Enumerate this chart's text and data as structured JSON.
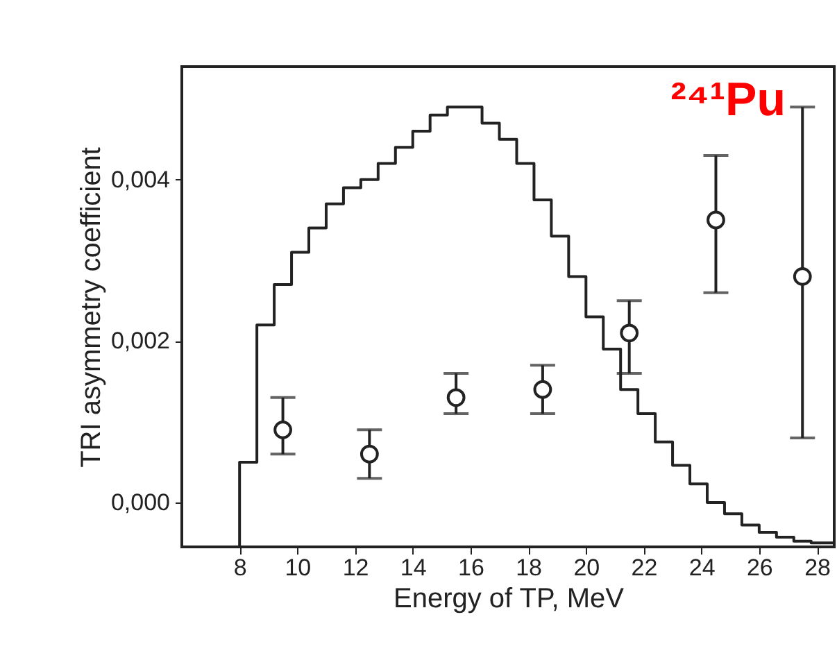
{
  "chart_data": {
    "type": "scatter",
    "xlabel": "Energy of TP, MeV",
    "ylabel": "TRI asymmetry coefficient",
    "annotations": [
      "²⁴¹Pu"
    ],
    "xlim": [
      6,
      28.6
    ],
    "xticks": [
      8,
      10,
      12,
      14,
      16,
      18,
      20,
      22,
      24,
      26,
      28
    ],
    "ylim": [
      -0.00055,
      0.0054
    ],
    "yticks": [
      {
        "value": 0,
        "label": "0,000"
      },
      {
        "value": 0.002,
        "label": "0,002"
      },
      {
        "value": 0.004,
        "label": "0,004"
      }
    ],
    "grid": false,
    "series": [
      {
        "type": "step",
        "color": "#222222",
        "line_style": "solid",
        "marker": "none",
        "x": [
          8.0,
          8.0,
          8.6,
          9.2,
          9.8,
          10.4,
          11.0,
          11.6,
          12.2,
          12.8,
          13.4,
          14.0,
          14.6,
          15.2,
          15.8,
          16.4,
          17.0,
          17.6,
          18.2,
          18.8,
          19.4,
          20.0,
          20.6,
          21.2,
          21.8,
          22.4,
          23.0,
          23.6,
          24.2,
          24.8,
          25.4,
          26.0,
          26.6,
          27.2,
          27.8,
          28.6
        ],
        "values": [
          -0.00055,
          0.0005,
          0.0022,
          0.0027,
          0.0031,
          0.0034,
          0.0037,
          0.0039,
          0.004,
          0.0042,
          0.0044,
          0.0046,
          0.0048,
          0.0049,
          0.0049,
          0.0047,
          0.0045,
          0.0042,
          0.00375,
          0.0033,
          0.0028,
          0.0023,
          0.0019,
          0.0014,
          0.0011,
          0.00075,
          0.00046,
          0.00023,
          0.0,
          -0.00014,
          -0.00028,
          -0.00037,
          -0.00043,
          -0.00048,
          -0.0005,
          -0.0005
        ]
      },
      {
        "color": "#222222",
        "marker": "circle",
        "x": [
          9.5,
          12.5,
          15.5,
          18.5,
          21.5,
          24.5,
          27.5
        ],
        "values": [
          0.0009,
          0.0006,
          0.0013,
          0.0014,
          0.0021,
          0.0035,
          0.0028
        ],
        "errors": [
          [
            0.0006,
            0.0013
          ],
          [
            0.0003,
            0.0009
          ],
          [
            0.0011,
            0.0016
          ],
          [
            0.0011,
            0.0017
          ],
          [
            0.0016,
            0.0025
          ],
          [
            0.0026,
            0.0043
          ],
          [
            0.0008,
            0.0049
          ]
        ]
      }
    ]
  }
}
